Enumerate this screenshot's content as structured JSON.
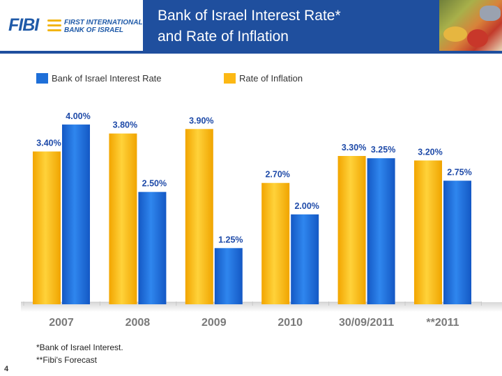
{
  "header": {
    "logo_mark": "FIBI",
    "logo_line1": "FIRST INTERNATIONAL",
    "logo_line2": "BANK OF ISRAEL",
    "title_line1": "Bank of Israel Interest Rate*",
    "title_line2": "and Rate of Inflation"
  },
  "colors": {
    "header": "#1f4f9e",
    "interest": "#1e6fd8",
    "inflation": "#fcb814",
    "label": "#1e4aa8",
    "year": "#7a7a7a"
  },
  "chart_data": {
    "type": "bar",
    "categories": [
      "2007",
      "2008",
      "2009",
      "2010",
      "30/09/2011",
      "**2011"
    ],
    "series": [
      {
        "name": "Rate of Inflation",
        "values": [
          3.4,
          3.8,
          3.9,
          2.7,
          3.3,
          3.2
        ],
        "labels": [
          "3.40%",
          "3.80%",
          "3.90%",
          "2.70%",
          "3.30%",
          "3.20%"
        ]
      },
      {
        "name": "Bank of Israel Interest Rate",
        "values": [
          4.0,
          2.5,
          1.25,
          2.0,
          3.25,
          2.75
        ],
        "labels": [
          "4.00%",
          "2.50%",
          "1.25%",
          "2.00%",
          "3.25%",
          "2.75%"
        ]
      }
    ],
    "legend": [
      "Bank of Israel Interest Rate",
      "Rate of Inflation"
    ],
    "legend_position": "top",
    "ylim": [
      0,
      4.4
    ],
    "grid": false
  },
  "footnotes": [
    "*Bank of Israel Interest.",
    "**Fibi's Forecast"
  ],
  "page_number": "4"
}
